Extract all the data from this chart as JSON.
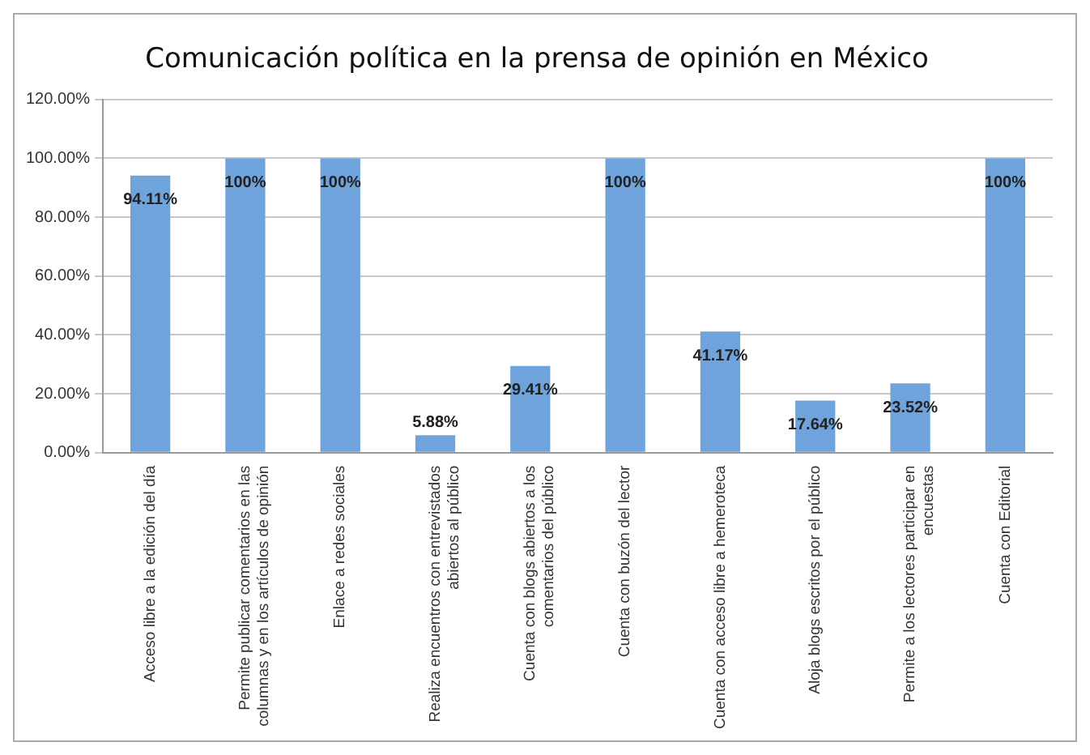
{
  "chart_data": {
    "type": "bar",
    "title": "Comunicación política en la prensa de opinión en México",
    "categories": [
      "Acceso libre a la edición del día",
      "Permite publicar comentarios en las columnas y en los artículos de opinión",
      "Enlace a redes sociales",
      "Realiza encuentros con entrevistados abiertos al público",
      "Cuenta con blogs abiertos a los comentarios del público",
      "Cuenta con buzón del lector",
      "Cuenta con acceso libre a hemeroteca",
      "Aloja blogs escritos por el público",
      "Permite a los lectores participar en encuestas",
      "Cuenta con Editorial"
    ],
    "values": [
      94.11,
      100,
      100,
      5.88,
      29.41,
      100,
      41.17,
      17.64,
      23.52,
      100
    ],
    "value_labels": [
      "94.11%",
      "100%",
      "100%",
      "5.88%",
      "29.41%",
      "100%",
      "41.17%",
      "17.64%",
      "23.52%",
      "100%"
    ],
    "color": "#6fa3dc",
    "ylim": [
      0,
      120
    ],
    "yticks": [
      {
        "value": 0,
        "label": "0.00%"
      },
      {
        "value": 20,
        "label": "20.00%"
      },
      {
        "value": 40,
        "label": "40.00%"
      },
      {
        "value": 60,
        "label": "60.00%"
      },
      {
        "value": 80,
        "label": "80.00%"
      },
      {
        "value": 100,
        "label": "100.00%"
      },
      {
        "value": 120,
        "label": "120.00%"
      }
    ],
    "grid": "y"
  }
}
